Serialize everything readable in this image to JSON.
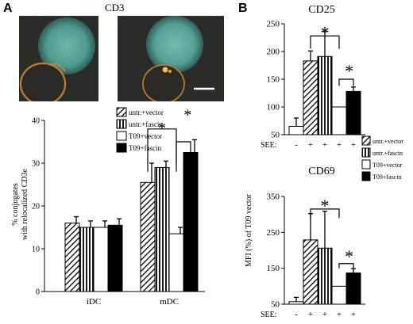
{
  "panel_labels": {
    "a": "A",
    "b": "B"
  },
  "images": {
    "title": "CD3"
  },
  "legend_a": [
    {
      "label": "untr.+vector",
      "fill": "hatch-diag"
    },
    {
      "label": "untr.+fascin",
      "fill": "hatch-vert"
    },
    {
      "label": "T09+vector",
      "fill": "white"
    },
    {
      "label": "T09+fascin",
      "fill": "black"
    }
  ],
  "legend_b": [
    {
      "label": "untr.+vector",
      "fill": "hatch-diag"
    },
    {
      "label": "untr.+fascin",
      "fill": "hatch-vert"
    },
    {
      "label": "T09+vector",
      "fill": "white"
    },
    {
      "label": "T09+fascin",
      "fill": "black"
    }
  ],
  "chart_data": [
    {
      "type": "bar",
      "ylabel": "% conjugates with relocalized CD3e",
      "ylim": [
        0,
        40
      ],
      "yticks": [
        0,
        10,
        20,
        30,
        40
      ],
      "categories": [
        "iDC",
        "mDC"
      ],
      "series": [
        {
          "name": "untr.+vector",
          "fill": "hatch-diag",
          "values": [
            16,
            25.5
          ],
          "errors": [
            1.5,
            4.5
          ]
        },
        {
          "name": "untr.+fascin",
          "fill": "hatch-vert",
          "values": [
            15,
            29
          ],
          "errors": [
            1.5,
            1.5
          ]
        },
        {
          "name": "T09+vector",
          "fill": "white",
          "values": [
            15,
            13.5
          ],
          "errors": [
            1.5,
            1.5
          ]
        },
        {
          "name": "T09+fascin",
          "fill": "black",
          "values": [
            15.5,
            32.5
          ],
          "errors": [
            1.5,
            3
          ]
        }
      ],
      "significance": [
        "*",
        "*"
      ]
    },
    {
      "type": "bar",
      "title": "CD25",
      "ylabel": "MFI (%) of T09 vector",
      "ylim": [
        50,
        250
      ],
      "yticks": [
        50,
        100,
        150,
        200,
        250
      ],
      "xlabel": "SEE:",
      "categories": [
        "-",
        "+",
        "+",
        "+",
        "+"
      ],
      "bars": [
        {
          "fill": "white",
          "value": 65,
          "error": 15
        },
        {
          "fill": "hatch-diag",
          "value": 183,
          "error": 18
        },
        {
          "fill": "hatch-vert",
          "value": 191,
          "error": 45
        },
        {
          "fill": "white",
          "value": 100,
          "error": 0
        },
        {
          "fill": "black",
          "value": 128,
          "error": 8
        }
      ],
      "significance": [
        "*",
        "*"
      ]
    },
    {
      "type": "bar",
      "title": "CD69",
      "ylabel": "MFI (%) of T09 vector",
      "ylim": [
        50,
        350
      ],
      "yticks": [
        50,
        150,
        250,
        350
      ],
      "xlabel": "SEE:",
      "categories": [
        "-",
        "+",
        "+",
        "+",
        "+"
      ],
      "bars": [
        {
          "fill": "white",
          "value": 57,
          "error": 12
        },
        {
          "fill": "hatch-diag",
          "value": 229,
          "error": 73
        },
        {
          "fill": "hatch-vert",
          "value": 206,
          "error": 103
        },
        {
          "fill": "white",
          "value": 100,
          "error": 0
        },
        {
          "fill": "black",
          "value": 137,
          "error": 12
        }
      ],
      "significance": [
        "*",
        "*"
      ]
    }
  ]
}
